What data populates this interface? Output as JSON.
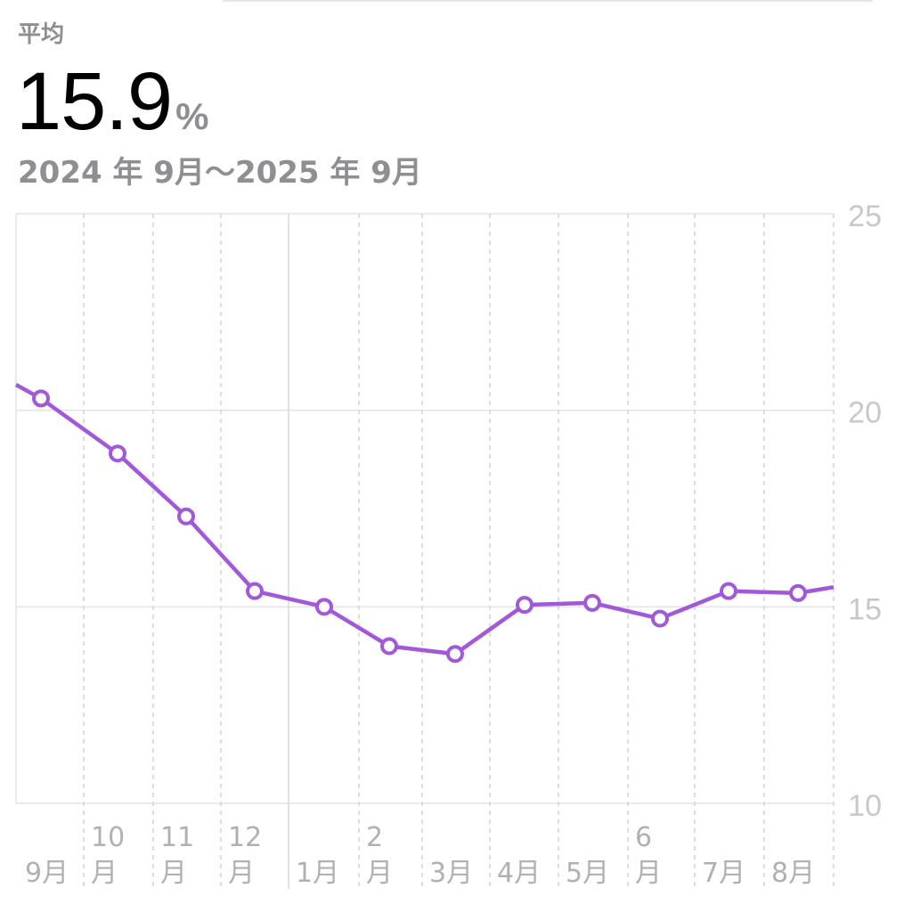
{
  "header": {
    "average_label": "平均",
    "average_value": "15.9",
    "average_unit": "%",
    "date_range": "2024 年 9月〜2025 年 9月"
  },
  "chart_data": {
    "type": "line",
    "title": "",
    "xlabel": "",
    "ylabel": "",
    "ylim": [
      10,
      25
    ],
    "yticks": [
      10,
      15,
      20,
      25
    ],
    "grid": true,
    "line_color": "#a259d9",
    "x_tick_labels": [
      {
        "top": "",
        "bottom": "9月"
      },
      {
        "top": "10",
        "bottom": "月"
      },
      {
        "top": "11",
        "bottom": "月"
      },
      {
        "top": "12",
        "bottom": "月"
      },
      {
        "top": "",
        "bottom": "1月"
      },
      {
        "top": "2",
        "bottom": "月"
      },
      {
        "top": "",
        "bottom": "3月"
      },
      {
        "top": "",
        "bottom": "4月"
      },
      {
        "top": "",
        "bottom": "5月"
      },
      {
        "top": "6",
        "bottom": "月"
      },
      {
        "top": "",
        "bottom": "7月"
      },
      {
        "top": "",
        "bottom": "8月"
      }
    ],
    "series": [
      {
        "points": [
          {
            "x": "2024-09",
            "y": 20.3
          },
          {
            "x": "2024-10",
            "y": 18.9
          },
          {
            "x": "2024-11",
            "y": 17.3
          },
          {
            "x": "2024-12",
            "y": 15.4
          },
          {
            "x": "2025-01",
            "y": 15.0
          },
          {
            "x": "2025-02",
            "y": 14.0
          },
          {
            "x": "2025-03",
            "y": 13.8
          },
          {
            "x": "2025-04",
            "y": 15.05
          },
          {
            "x": "2025-05",
            "y": 15.1
          },
          {
            "x": "2025-06",
            "y": 14.7
          },
          {
            "x": "2025-07",
            "y": 15.4
          },
          {
            "x": "2025-08",
            "y": 15.35
          }
        ],
        "left_edge_value": 20.65,
        "right_edge_value": 15.5
      }
    ]
  }
}
